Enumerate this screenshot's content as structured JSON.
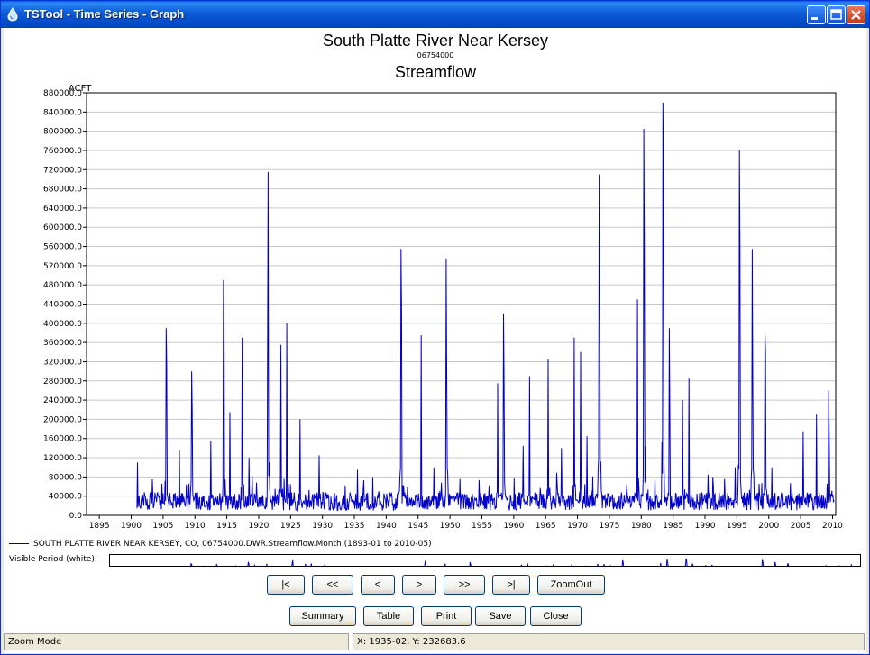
{
  "window": {
    "title": "TSTool - Time Series - Graph",
    "minimize_icon": "minimize-icon",
    "maximize_icon": "maximize-icon",
    "close_icon": "close-icon"
  },
  "chart_data": {
    "type": "line",
    "title": "South Platte River Near Kersey",
    "subtitle": "06754000",
    "title2": "Streamflow",
    "ylabel": "ACFT",
    "xlim": [
      1893,
      2010.5
    ],
    "ylim": [
      0,
      880000
    ],
    "y_ticks": [
      "880000.0",
      "840000.0",
      "800000.0",
      "760000.0",
      "720000.0",
      "680000.0",
      "640000.0",
      "600000.0",
      "560000.0",
      "520000.0",
      "480000.0",
      "440000.0",
      "400000.0",
      "360000.0",
      "320000.0",
      "280000.0",
      "240000.0",
      "200000.0",
      "160000.0",
      "120000.0",
      "80000.0",
      "40000.0",
      "0.0"
    ],
    "x_ticks": [
      "1895",
      "1900",
      "1905",
      "1910",
      "1915",
      "1920",
      "1925",
      "1930",
      "1935",
      "1940",
      "1945",
      "1950",
      "1955",
      "1960",
      "1965",
      "1970",
      "1975",
      "1980",
      "1985",
      "1990",
      "1995",
      "2000",
      "2005",
      "2010"
    ],
    "grid": true,
    "series": [
      {
        "name": "SOUTH PLATTE RIVER NEAR KERSEY, CO, 06754000.DWR.Streamflow.Month (1893-01 to 2010-05)",
        "color": "#0000cc",
        "period": [
          "1893-01",
          "2010-05"
        ],
        "peaks": [
          {
            "x": 1901.0,
            "y": 110000
          },
          {
            "x": 1903.3,
            "y": 75000
          },
          {
            "x": 1905.5,
            "y": 390000
          },
          {
            "x": 1905.6,
            "y": 315000
          },
          {
            "x": 1907.6,
            "y": 135000
          },
          {
            "x": 1909.5,
            "y": 300000
          },
          {
            "x": 1909.6,
            "y": 220000
          },
          {
            "x": 1912.5,
            "y": 155000
          },
          {
            "x": 1914.5,
            "y": 490000
          },
          {
            "x": 1914.6,
            "y": 410000
          },
          {
            "x": 1915.5,
            "y": 215000
          },
          {
            "x": 1917.4,
            "y": 370000
          },
          {
            "x": 1918.5,
            "y": 120000
          },
          {
            "x": 1921.5,
            "y": 715000
          },
          {
            "x": 1921.4,
            "y": 410000
          },
          {
            "x": 1923.5,
            "y": 355000
          },
          {
            "x": 1924.4,
            "y": 400000
          },
          {
            "x": 1926.5,
            "y": 200000
          },
          {
            "x": 1929.5,
            "y": 125000
          },
          {
            "x": 1935.5,
            "y": 95000
          },
          {
            "x": 1942.3,
            "y": 555000
          },
          {
            "x": 1942.4,
            "y": 430000
          },
          {
            "x": 1945.5,
            "y": 375000
          },
          {
            "x": 1947.5,
            "y": 100000
          },
          {
            "x": 1949.4,
            "y": 535000
          },
          {
            "x": 1949.5,
            "y": 300000
          },
          {
            "x": 1957.5,
            "y": 275000
          },
          {
            "x": 1958.4,
            "y": 420000
          },
          {
            "x": 1958.5,
            "y": 275000
          },
          {
            "x": 1961.5,
            "y": 145000
          },
          {
            "x": 1962.5,
            "y": 290000
          },
          {
            "x": 1965.4,
            "y": 325000
          },
          {
            "x": 1967.5,
            "y": 140000
          },
          {
            "x": 1969.5,
            "y": 370000
          },
          {
            "x": 1970.5,
            "y": 340000
          },
          {
            "x": 1971.5,
            "y": 165000
          },
          {
            "x": 1973.4,
            "y": 710000
          },
          {
            "x": 1973.5,
            "y": 550000
          },
          {
            "x": 1979.4,
            "y": 450000
          },
          {
            "x": 1980.4,
            "y": 805000
          },
          {
            "x": 1980.5,
            "y": 565000
          },
          {
            "x": 1983.4,
            "y": 860000
          },
          {
            "x": 1983.5,
            "y": 715000
          },
          {
            "x": 1984.4,
            "y": 390000
          },
          {
            "x": 1984.5,
            "y": 210000
          },
          {
            "x": 1986.5,
            "y": 240000
          },
          {
            "x": 1987.5,
            "y": 285000
          },
          {
            "x": 1995.4,
            "y": 760000
          },
          {
            "x": 1995.5,
            "y": 550000
          },
          {
            "x": 1997.4,
            "y": 555000
          },
          {
            "x": 1997.5,
            "y": 310000
          },
          {
            "x": 1999.4,
            "y": 380000
          },
          {
            "x": 1999.5,
            "y": 345000
          },
          {
            "x": 2000.5,
            "y": 100000
          },
          {
            "x": 2005.4,
            "y": 175000
          },
          {
            "x": 2007.5,
            "y": 210000
          },
          {
            "x": 2009.4,
            "y": 260000
          },
          {
            "x": 2009.5,
            "y": 160000
          }
        ]
      }
    ]
  },
  "legend": {
    "text": "SOUTH PLATTE RIVER NEAR KERSEY, CO, 06754000.DWR.Streamflow.Month (1893-01 to 2010-05)"
  },
  "overview": {
    "label": "Visible Period (white):"
  },
  "nav_buttons": [
    "|<",
    "<<",
    "<",
    ">",
    ">>",
    ">|",
    "ZoomOut"
  ],
  "action_buttons": [
    "Summary",
    "Table",
    "Print",
    "Save",
    "Close"
  ],
  "status": {
    "mode": "Zoom Mode",
    "coords": "X:  1935-02,  Y:  232683.6"
  }
}
